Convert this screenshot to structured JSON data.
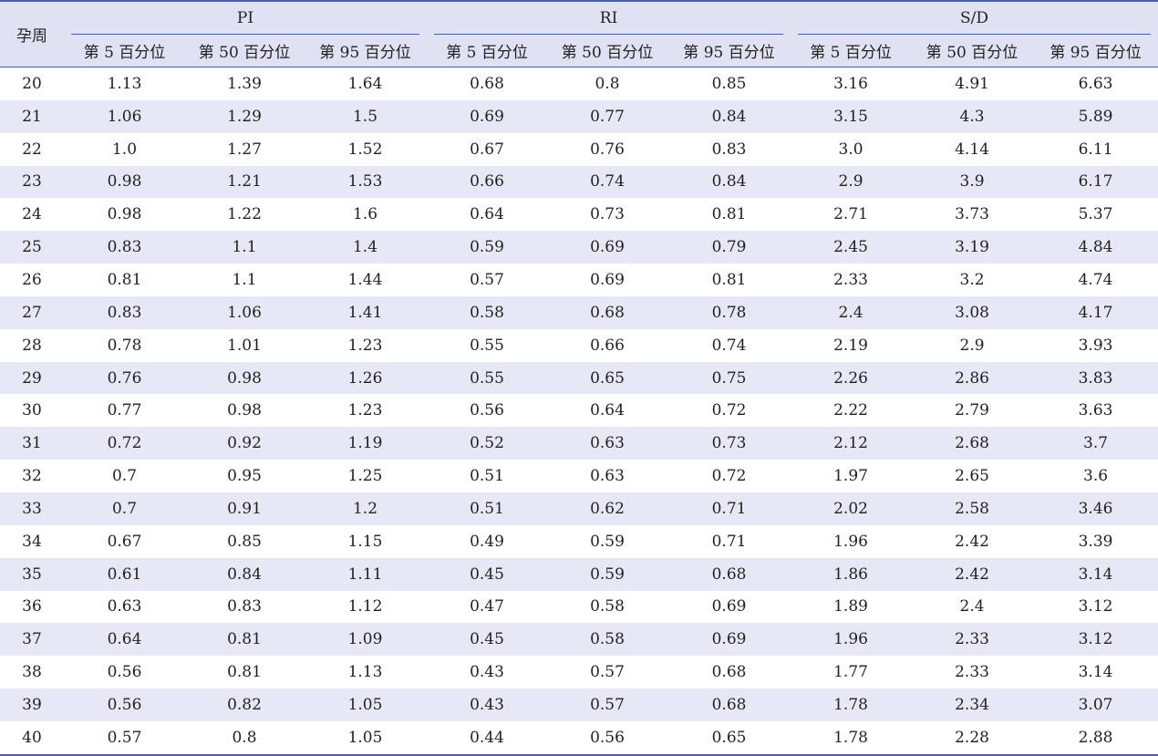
{
  "table": {
    "row_header": "孕周",
    "groups": [
      "PI",
      "RI",
      "S/D"
    ],
    "sub_headers": [
      "第 5 百分位",
      "第 50 百分位",
      "第 95 百分位"
    ],
    "rows": [
      {
        "week": "20",
        "values": [
          "1.13",
          "1.39",
          "1.64",
          "0.68",
          "0.8",
          "0.85",
          "3.16",
          "4.91",
          "6.63"
        ]
      },
      {
        "week": "21",
        "values": [
          "1.06",
          "1.29",
          "1.5",
          "0.69",
          "0.77",
          "0.84",
          "3.15",
          "4.3",
          "5.89"
        ]
      },
      {
        "week": "22",
        "values": [
          "1.0",
          "1.27",
          "1.52",
          "0.67",
          "0.76",
          "0.83",
          "3.0",
          "4.14",
          "6.11"
        ]
      },
      {
        "week": "23",
        "values": [
          "0.98",
          "1.21",
          "1.53",
          "0.66",
          "0.74",
          "0.84",
          "2.9",
          "3.9",
          "6.17"
        ]
      },
      {
        "week": "24",
        "values": [
          "0.98",
          "1.22",
          "1.6",
          "0.64",
          "0.73",
          "0.81",
          "2.71",
          "3.73",
          "5.37"
        ]
      },
      {
        "week": "25",
        "values": [
          "0.83",
          "1.1",
          "1.4",
          "0.59",
          "0.69",
          "0.79",
          "2.45",
          "3.19",
          "4.84"
        ]
      },
      {
        "week": "26",
        "values": [
          "0.81",
          "1.1",
          "1.44",
          "0.57",
          "0.69",
          "0.81",
          "2.33",
          "3.2",
          "4.74"
        ]
      },
      {
        "week": "27",
        "values": [
          "0.83",
          "1.06",
          "1.41",
          "0.58",
          "0.68",
          "0.78",
          "2.4",
          "3.08",
          "4.17"
        ]
      },
      {
        "week": "28",
        "values": [
          "0.78",
          "1.01",
          "1.23",
          "0.55",
          "0.66",
          "0.74",
          "2.19",
          "2.9",
          "3.93"
        ]
      },
      {
        "week": "29",
        "values": [
          "0.76",
          "0.98",
          "1.26",
          "0.55",
          "0.65",
          "0.75",
          "2.26",
          "2.86",
          "3.83"
        ]
      },
      {
        "week": "30",
        "values": [
          "0.77",
          "0.98",
          "1.23",
          "0.56",
          "0.64",
          "0.72",
          "2.22",
          "2.79",
          "3.63"
        ]
      },
      {
        "week": "31",
        "values": [
          "0.72",
          "0.92",
          "1.19",
          "0.52",
          "0.63",
          "0.73",
          "2.12",
          "2.68",
          "3.7"
        ]
      },
      {
        "week": "32",
        "values": [
          "0.7",
          "0.95",
          "1.25",
          "0.51",
          "0.63",
          "0.72",
          "1.97",
          "2.65",
          "3.6"
        ]
      },
      {
        "week": "33",
        "values": [
          "0.7",
          "0.91",
          "1.2",
          "0.51",
          "0.62",
          "0.71",
          "2.02",
          "2.58",
          "3.46"
        ]
      },
      {
        "week": "34",
        "values": [
          "0.67",
          "0.85",
          "1.15",
          "0.49",
          "0.59",
          "0.71",
          "1.96",
          "2.42",
          "3.39"
        ]
      },
      {
        "week": "35",
        "values": [
          "0.61",
          "0.84",
          "1.11",
          "0.45",
          "0.59",
          "0.68",
          "1.86",
          "2.42",
          "3.14"
        ]
      },
      {
        "week": "36",
        "values": [
          "0.63",
          "0.83",
          "1.12",
          "0.47",
          "0.58",
          "0.69",
          "1.89",
          "2.4",
          "3.12"
        ]
      },
      {
        "week": "37",
        "values": [
          "0.64",
          "0.81",
          "1.09",
          "0.45",
          "0.58",
          "0.69",
          "1.96",
          "2.33",
          "3.12"
        ]
      },
      {
        "week": "38",
        "values": [
          "0.56",
          "0.81",
          "1.13",
          "0.43",
          "0.57",
          "0.68",
          "1.77",
          "2.33",
          "3.14"
        ]
      },
      {
        "week": "39",
        "values": [
          "0.56",
          "0.82",
          "1.05",
          "0.43",
          "0.57",
          "0.68",
          "1.78",
          "2.34",
          "3.07"
        ]
      },
      {
        "week": "40",
        "values": [
          "0.57",
          "0.8",
          "1.05",
          "0.44",
          "0.56",
          "0.65",
          "1.78",
          "2.28",
          "2.88"
        ]
      }
    ]
  }
}
